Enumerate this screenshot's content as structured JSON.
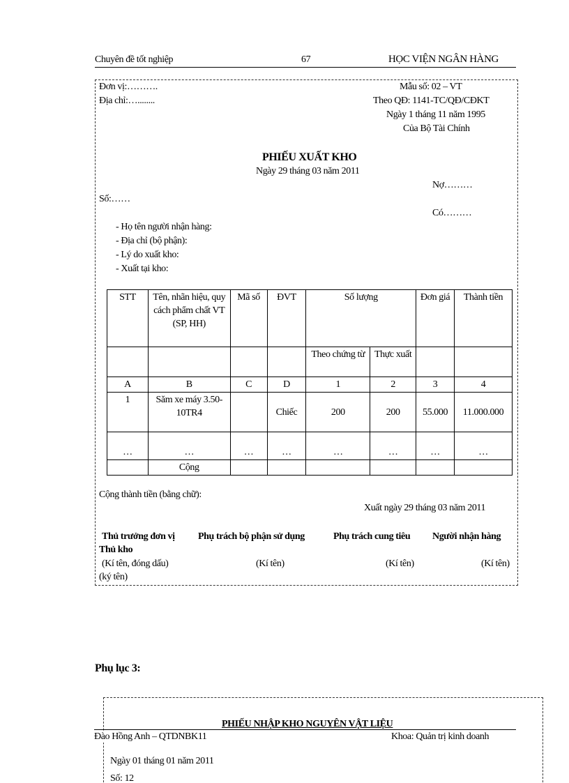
{
  "header": {
    "left": "Chuyên  đề tốt nghiệp",
    "page": "67",
    "right": "HỌC VIỆN NGÂN HÀNG"
  },
  "form": {
    "don_vi": "Đơn vị:……….",
    "dia_chi": "Địa chỉ:…........",
    "mau_so": "Mẫu số: 02 – VT",
    "theo_qd": "Theo QĐ: 1141-TC/QĐ/CĐKT",
    "ngay_qd": "Ngày 1 tháng 11 năm 1995",
    "cua": "Của Bộ Tài Chính",
    "title": "PHIẾU XUẤT KHO",
    "date": "Ngày 29 tháng 03 năm 2011",
    "no": "Nợ………",
    "so": "Số:……",
    "co": "Có………",
    "fields": [
      "- Họ tên người nhận hàng:",
      "- Địa chỉ (bộ phận):",
      "- Lý do xuất kho:",
      "- Xuất tại kho:"
    ],
    "table": {
      "headers": [
        "STT",
        "Tên, nhãn hiệu, quy cách phẩm chất VT (SP, HH)",
        "Mã số",
        "ĐVT",
        "Số lượng",
        "Đơn giá",
        "Thành tiền"
      ],
      "subheaders": [
        "Theo chứng từ",
        "Thực xuất"
      ],
      "codes": [
        "A",
        "B",
        "C",
        "D",
        "1",
        "2",
        "3",
        "4"
      ],
      "rows": [
        [
          "1",
          "Săm xe máy 3.50-10TR4",
          "",
          "Chiếc",
          "200",
          "200",
          "55.000",
          "11.000.000"
        ],
        [
          "…",
          "…",
          "…",
          "…",
          "…",
          "…",
          "…",
          "…"
        ]
      ],
      "total_label": "Cộng"
    },
    "total_words": "Cộng thành tiền (bằng chữ):",
    "export_date": "Xuất ngày 29 tháng 03 năm 2011",
    "signers": [
      "Thủ trưởng đơn vị",
      "Phụ trách bộ phận sử dụng",
      "Phụ trách cung tiêu",
      "Người nhận hàng",
      "Thủ kho"
    ],
    "sign_notes": [
      "(Kí tên, đóng dấu)",
      "(Kí tên)",
      "(Kí tên)",
      "(Kí tên)",
      "(ký tên)"
    ]
  },
  "appendix": "Phụ lục 3:",
  "form2": {
    "title": "PHIẾU NHẬP KHO NGUYÊN VẬT LIỆU",
    "date": "Ngày 01 tháng 01 năm 2011",
    "so": "Số: 12"
  },
  "footer": {
    "left": "Đào Hồng  Anh – QTDNBK11",
    "right": "Khoa:  Quản trị kinh  doanh"
  }
}
